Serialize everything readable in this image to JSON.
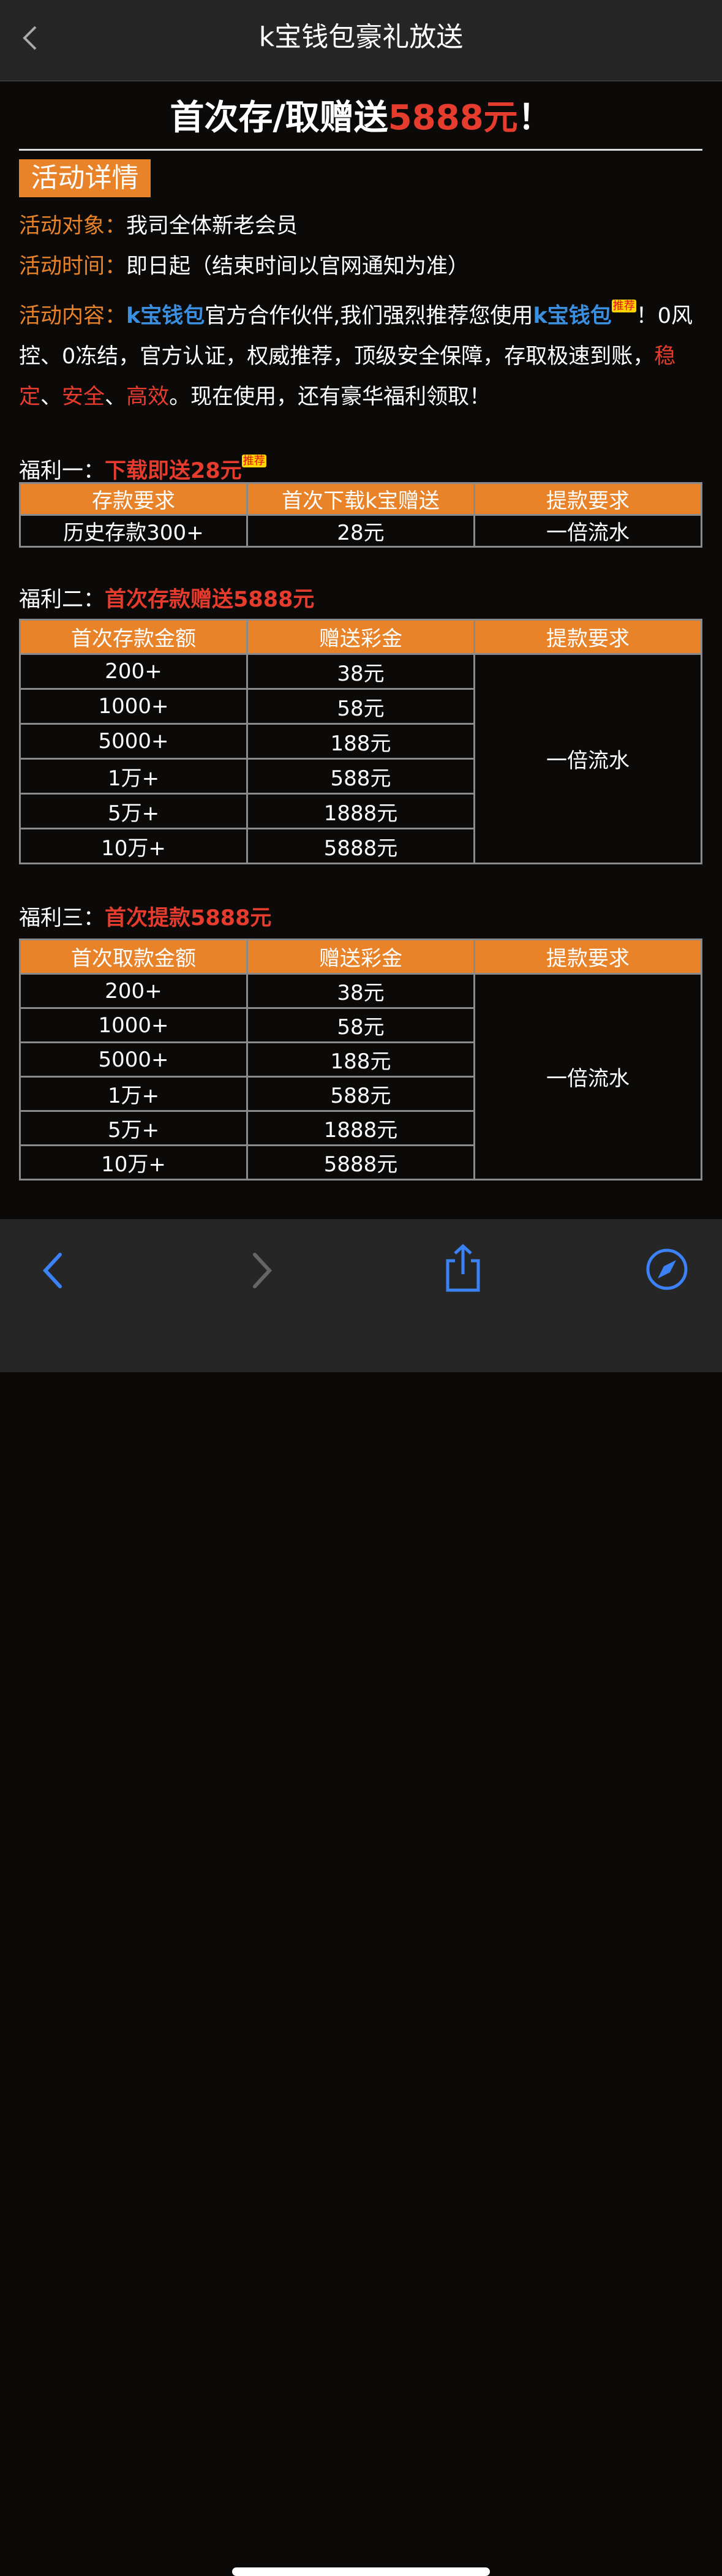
{
  "header": {
    "title": "k宝钱包豪礼放送"
  },
  "banner": {
    "text": "首次存/取赠送",
    "amount": "5888元",
    "end": "！"
  },
  "section_title": "活动详情",
  "details": [
    {
      "label": "活动对象：",
      "text": "我司全体新老会员"
    },
    {
      "label": "活动时间：",
      "text": "即日起（结束时间以官网通知为准）"
    }
  ],
  "content": {
    "label": "活动内容：",
    "segments": [
      {
        "text": "k宝钱包",
        "style": "blue"
      },
      {
        "text": "官方合作伙伴,我们强烈推荐您使用",
        "style": "plain"
      },
      {
        "text": "k宝钱包",
        "style": "blue"
      },
      {
        "text": "推荐",
        "style": "badge"
      },
      {
        "text": "！0风控、0冻结，官方认证，权威推荐，顶级安全保障，存取极速到账，",
        "style": "plain"
      },
      {
        "text": "稳定",
        "style": "red"
      },
      {
        "text": "、",
        "style": "plain"
      },
      {
        "text": "安全",
        "style": "red"
      },
      {
        "text": "、",
        "style": "plain"
      },
      {
        "text": "高效",
        "style": "red"
      },
      {
        "text": "。现在使用，还有豪华福利领取！",
        "style": "plain"
      }
    ]
  },
  "benefits": [
    {
      "label": "福利一：",
      "highlight": "下载即送28元",
      "badge": "推荐",
      "table": {
        "headers": [
          "存款要求",
          "首次下载k宝赠送",
          "提款要求"
        ],
        "rows": [
          [
            "历史存款300+",
            "28元",
            "一倍流水"
          ]
        ]
      }
    },
    {
      "label": "福利二：",
      "highlight": "首次存款赠送5888元",
      "table": {
        "headers": [
          "首次存款金额",
          "赠送彩金",
          "提款要求"
        ],
        "rows": [
          [
            "200+",
            "38元"
          ],
          [
            "1000+",
            "58元"
          ],
          [
            "5000+",
            "188元"
          ],
          [
            "1万+",
            "588元"
          ],
          [
            "5万+",
            "1888元"
          ],
          [
            "10万+",
            "5888元"
          ]
        ],
        "merged": "一倍流水"
      }
    },
    {
      "label": "福利三：",
      "highlight": "首次提款5888元",
      "table": {
        "headers": [
          "首次取款金额",
          "赠送彩金",
          "提款要求"
        ],
        "rows": [
          [
            "200+",
            "38元"
          ],
          [
            "1000+",
            "58元"
          ],
          [
            "5000+",
            "188元"
          ],
          [
            "1万+",
            "588元"
          ],
          [
            "5万+",
            "1888元"
          ],
          [
            "10万+",
            "5888元"
          ]
        ],
        "merged": "一倍流水"
      }
    }
  ]
}
